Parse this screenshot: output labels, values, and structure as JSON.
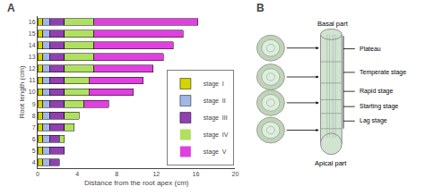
{
  "chart_data": [
    {
      "type": "bar",
      "title": "A",
      "orientation": "horizontal",
      "stacked": true,
      "categories": [
        4,
        5,
        6,
        7,
        8,
        9,
        10,
        11,
        12,
        13,
        14,
        15,
        16
      ],
      "series": [
        {
          "name": "stage  I",
          "color": "#d4d400",
          "values": [
            0.5,
            0.5,
            0.5,
            0.5,
            0.5,
            0.5,
            0.5,
            0.5,
            0.5,
            0.5,
            0.5,
            0.5,
            0.5
          ]
        },
        {
          "name": "stage  II",
          "color": "#a0b8e8",
          "values": [
            0.7,
            0.7,
            0.7,
            0.7,
            0.7,
            0.7,
            0.7,
            0.7,
            0.7,
            0.7,
            0.7,
            0.7,
            0.7
          ]
        },
        {
          "name": "stage  III",
          "color": "#9040b0",
          "values": [
            1.0,
            1.5,
            1.0,
            1.5,
            1.5,
            1.5,
            1.5,
            1.5,
            1.5,
            1.5,
            1.5,
            1.5,
            1.5
          ]
        },
        {
          "name": "stage  IV",
          "color": "#b0e060",
          "values": [
            0.0,
            0.0,
            0.5,
            1.0,
            1.5,
            2.0,
            2.5,
            2.5,
            3.0,
            3.0,
            3.0,
            3.0,
            3.0
          ]
        },
        {
          "name": "stage  V",
          "color": "#e040e0",
          "values": [
            0.0,
            0.0,
            0.0,
            0.0,
            0.0,
            2.5,
            4.5,
            5.5,
            6.0,
            7.0,
            8.0,
            9.0,
            10.5
          ]
        }
      ],
      "xlabel": "Distance from the root apex (cm)",
      "ylabel": "Root length (cm)",
      "xlim": [
        0,
        20
      ],
      "xticks": [
        0,
        4,
        8,
        12,
        16,
        20
      ],
      "ylim": [
        3.5,
        16.5
      ],
      "yticks": [
        4,
        5,
        6,
        7,
        8,
        9,
        10,
        11,
        12,
        13,
        14,
        15,
        16
      ],
      "grid": false,
      "legend": "lower right"
    },
    {
      "type": "diagram",
      "title": "B",
      "annotations": [
        "Plateau",
        "Temperate stage",
        "Rapid stage",
        "Starting stage",
        "Lag stage",
        "Basal part",
        "Apical part"
      ]
    }
  ]
}
